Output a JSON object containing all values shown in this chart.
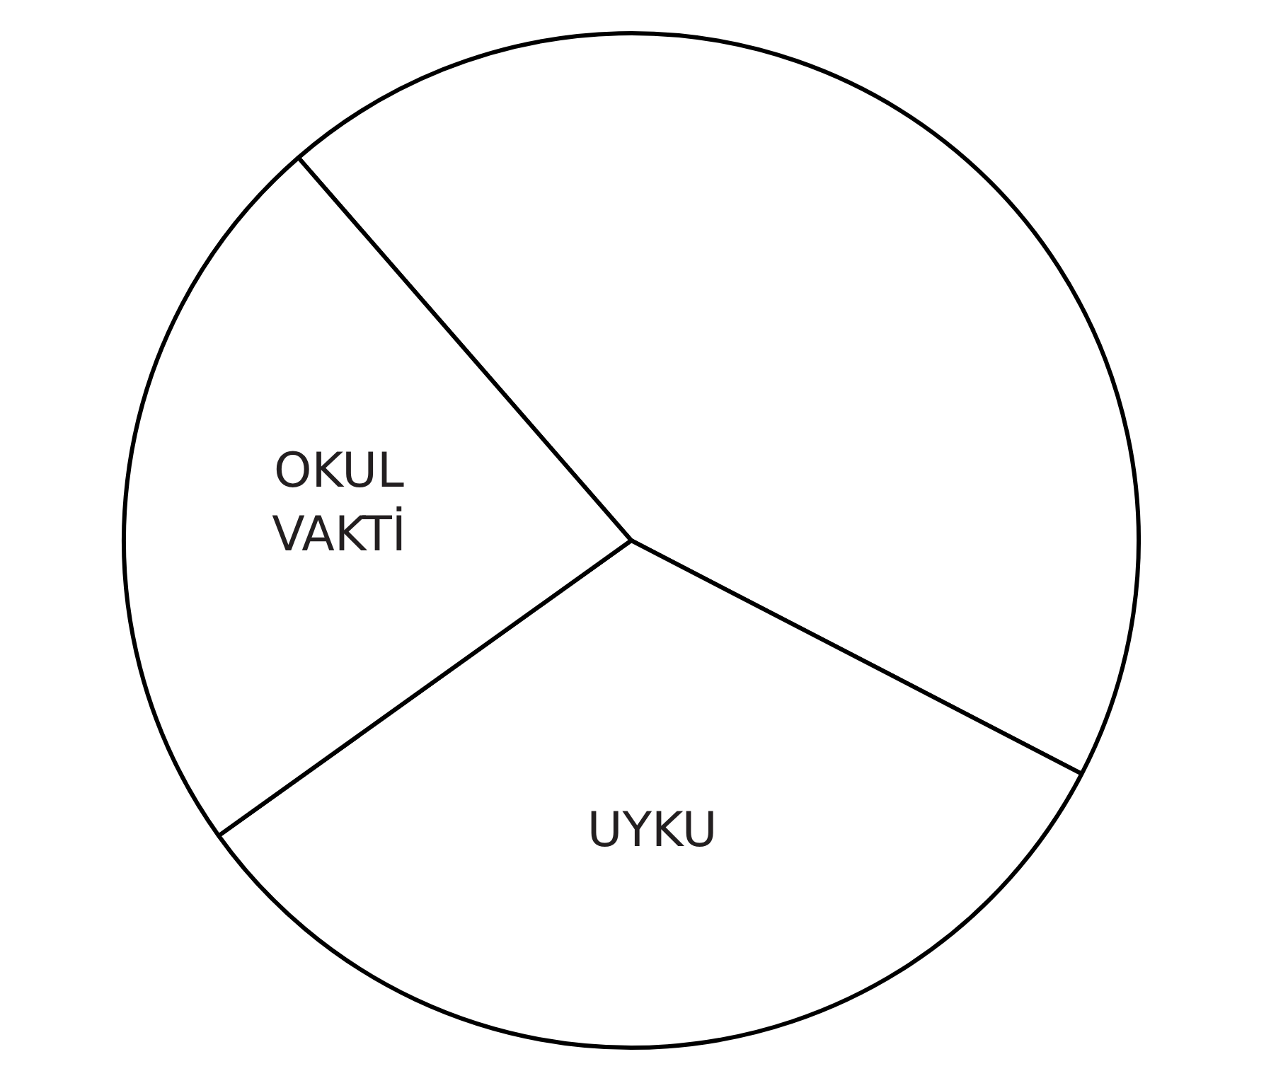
{
  "chart_data": {
    "type": "pie",
    "categories": [
      null,
      "UYKU",
      "OKUL VAKTİ"
    ],
    "values": [
      44,
      32.5,
      23.5
    ],
    "colors": [
      "#ffffff",
      "#ffffff",
      "#ffffff"
    ]
  }
}
